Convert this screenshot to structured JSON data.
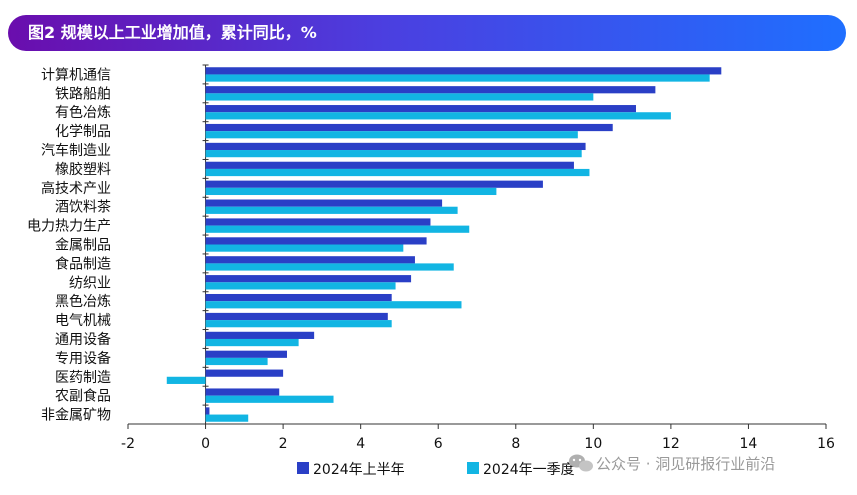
{
  "header": {
    "title": "图2 规模以上工业增加值，累计同比，%"
  },
  "watermark": {
    "text": "公众号 · 洞见研报行业前沿",
    "icon": "wechat-icon"
  },
  "colors": {
    "series1": "#2a3fc6",
    "series2": "#12b5e3",
    "axis": "#333333"
  },
  "chart_data": {
    "type": "bar",
    "orientation": "horizontal",
    "title": "图2 规模以上工业增加值，累计同比，%",
    "xlabel": "",
    "ylabel": "",
    "xlim": [
      -2,
      16
    ],
    "xticks": [
      -2,
      0,
      2,
      4,
      6,
      8,
      10,
      12,
      14,
      16
    ],
    "grid": false,
    "legend_position": "bottom",
    "categories": [
      "计算机通信",
      "铁路船舶",
      "有色冶炼",
      "化学制品",
      "汽车制造业",
      "橡胶塑料",
      "高技术产业",
      "酒饮料茶",
      "电力热力生产",
      "金属制品",
      "食品制造",
      "纺织业",
      "黑色冶炼",
      "电气机械",
      "通用设备",
      "专用设备",
      "医药制造",
      "农副食品",
      "非金属矿物"
    ],
    "series": [
      {
        "name": "2024年上半年",
        "values": [
          13.3,
          11.6,
          11.1,
          10.5,
          9.8,
          9.5,
          8.7,
          6.1,
          5.8,
          5.7,
          5.4,
          5.3,
          4.8,
          4.7,
          2.8,
          2.1,
          2.0,
          1.9,
          0.1
        ]
      },
      {
        "name": "2024年一季度",
        "values": [
          13.0,
          10.0,
          12.0,
          9.6,
          9.7,
          9.9,
          7.5,
          6.5,
          6.8,
          5.1,
          6.4,
          4.9,
          6.6,
          4.8,
          2.4,
          1.6,
          -1.0,
          3.3,
          1.1
        ]
      }
    ]
  }
}
